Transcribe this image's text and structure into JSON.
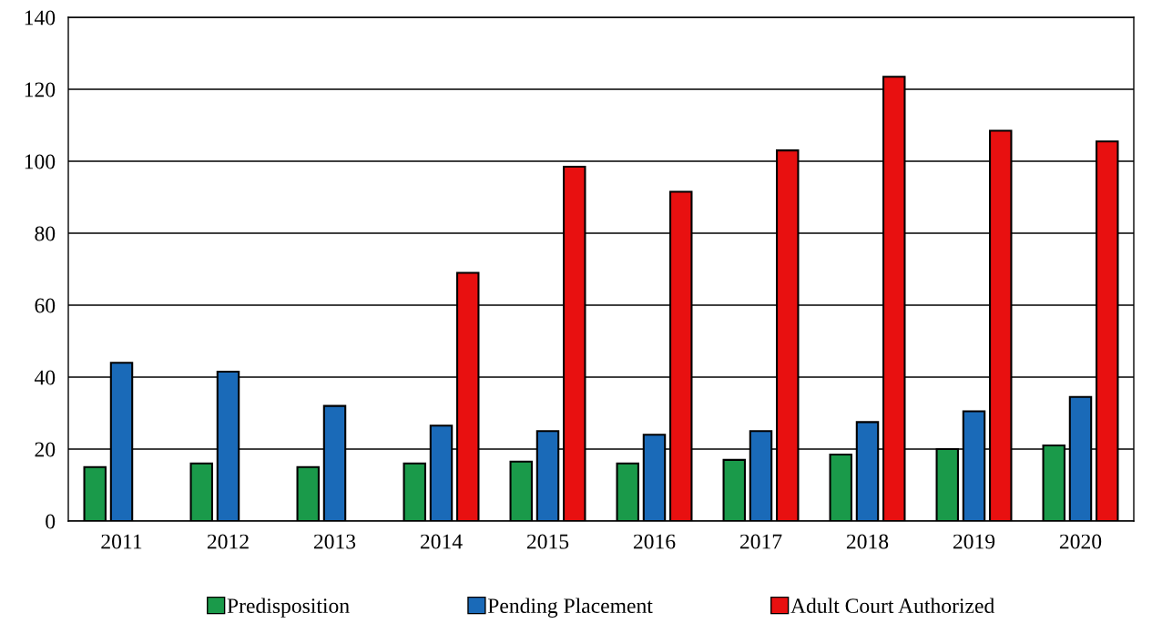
{
  "chart_data": {
    "type": "bar",
    "categories": [
      "2011",
      "2012",
      "2013",
      "2014",
      "2015",
      "2016",
      "2017",
      "2018",
      "2019",
      "2020"
    ],
    "series": [
      {
        "name": "Predisposition",
        "color": "#1a9a4a",
        "values": [
          15,
          16,
          15,
          16,
          16.5,
          16,
          17,
          18.5,
          20,
          21
        ]
      },
      {
        "name": "Pending Placement",
        "color": "#1a6ab8",
        "values": [
          44,
          41.5,
          32,
          26.5,
          25,
          24,
          25,
          27.5,
          30.5,
          34.5
        ]
      },
      {
        "name": "Adult Court Authorized",
        "color": "#e81010",
        "values": [
          null,
          null,
          null,
          69,
          98.5,
          91.5,
          103,
          123.5,
          108.5,
          105.5
        ]
      }
    ],
    "ylim": [
      0,
      140
    ],
    "yticks": [
      0,
      20,
      40,
      60,
      80,
      100,
      120,
      140
    ],
    "grid": "y",
    "legend": "bottom"
  }
}
